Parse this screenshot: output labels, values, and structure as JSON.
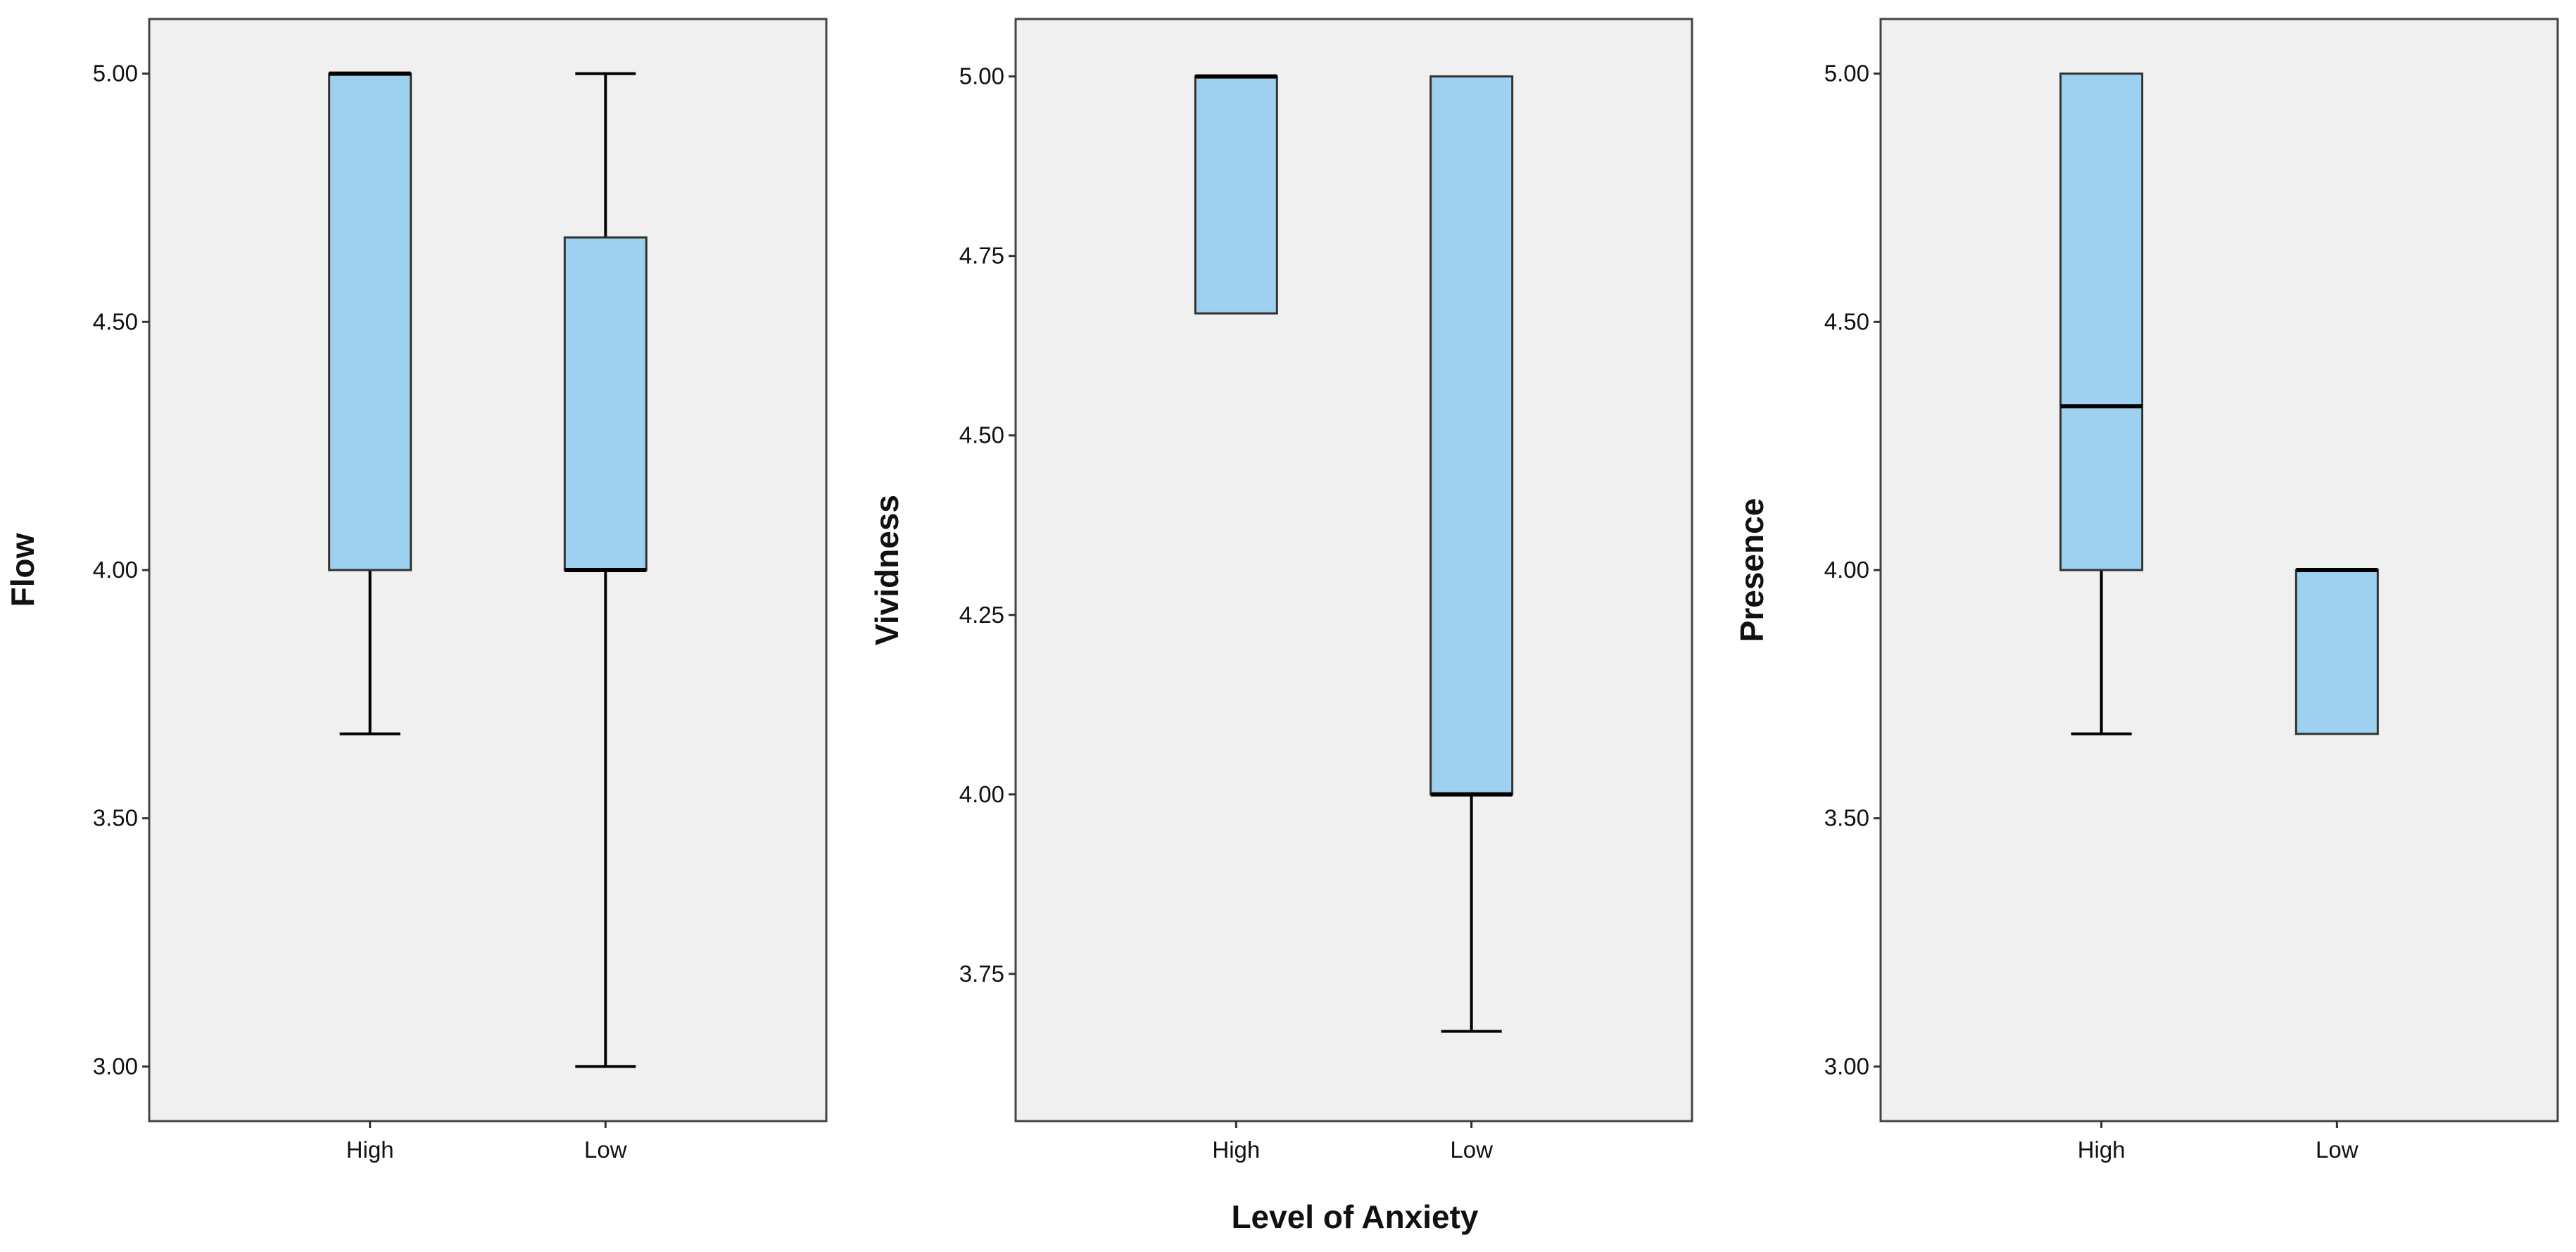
{
  "figure": {
    "shared_xlabel": "Level of Anxiety",
    "colors": {
      "plot_bg": "#f0f0f0",
      "box_fill": "#9dd1ef",
      "stroke": "#000000",
      "frame": "#444444"
    }
  },
  "chart_data": [
    {
      "type": "boxplot",
      "title": "",
      "xlabel": "",
      "ylabel": "Flow",
      "categories": [
        "High",
        "Low"
      ],
      "yticks": [
        "3.00",
        "3.50",
        "4.00",
        "4.50",
        "5.00"
      ],
      "ylim": [
        2.89,
        5.11
      ],
      "boxes": [
        {
          "category": "High",
          "min": 3.67,
          "q1": 4.0,
          "median": 5.0,
          "q3": 5.0,
          "max": 5.0
        },
        {
          "category": "Low",
          "min": 3.0,
          "q1": 4.0,
          "median": 4.0,
          "q3": 4.67,
          "max": 5.0
        }
      ]
    },
    {
      "type": "boxplot",
      "title": "",
      "xlabel": "",
      "ylabel": "Vividness",
      "categories": [
        "High",
        "Low"
      ],
      "yticks": [
        "3.75",
        "4.00",
        "4.25",
        "4.50",
        "4.75",
        "5.00"
      ],
      "ylim": [
        3.545,
        5.08
      ],
      "boxes": [
        {
          "category": "High",
          "min": 4.67,
          "q1": 4.67,
          "median": 5.0,
          "q3": 5.0,
          "max": 5.0
        },
        {
          "category": "Low",
          "min": 3.67,
          "q1": 4.0,
          "median": 4.0,
          "q3": 5.0,
          "max": 5.0
        }
      ]
    },
    {
      "type": "boxplot",
      "title": "",
      "xlabel": "",
      "ylabel": "Presence",
      "categories": [
        "High",
        "Low"
      ],
      "yticks": [
        "3.00",
        "3.50",
        "4.00",
        "4.50",
        "5.00"
      ],
      "ylim": [
        2.89,
        5.11
      ],
      "boxes": [
        {
          "category": "High",
          "min": 3.67,
          "q1": 4.0,
          "median": 4.33,
          "q3": 5.0,
          "max": 5.0
        },
        {
          "category": "Low",
          "min": 3.67,
          "q1": 3.67,
          "median": 4.0,
          "q3": 4.0,
          "max": 4.0
        }
      ]
    }
  ]
}
